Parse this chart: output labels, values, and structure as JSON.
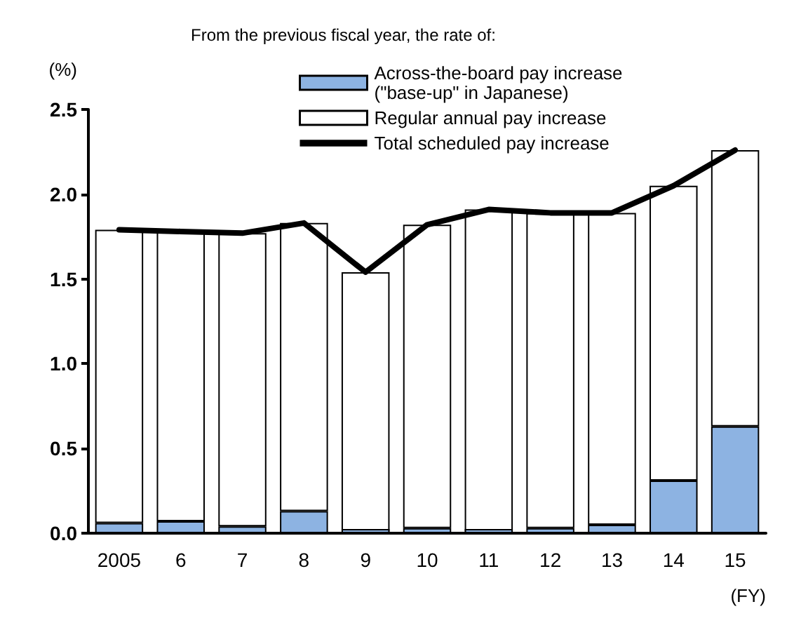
{
  "chart_data": {
    "type": "bar",
    "legend_title": "From the previous fiscal year, the rate of:",
    "ylabel": "(%)",
    "xlabel": "(FY)",
    "categories": [
      "2005",
      "6",
      "7",
      "8",
      "9",
      "10",
      "11",
      "12",
      "13",
      "14",
      "15"
    ],
    "stacked": true,
    "series": [
      {
        "name": "Across-the-board pay increase\n(\"base-up\" in Japanese)",
        "color": "#8db3e2",
        "values": [
          0.06,
          0.07,
          0.04,
          0.13,
          0.01,
          0.03,
          0.01,
          0.03,
          0.05,
          0.31,
          0.63
        ]
      },
      {
        "name": "Regular annual pay increase",
        "color": "#ffffff",
        "values": [
          1.73,
          1.71,
          1.73,
          1.7,
          1.53,
          1.79,
          1.9,
          1.86,
          1.84,
          1.74,
          1.63
        ]
      },
      {
        "name": "Total scheduled pay increase",
        "type": "line",
        "color": "#000000",
        "values": [
          1.79,
          1.78,
          1.77,
          1.83,
          1.54,
          1.82,
          1.91,
          1.89,
          1.89,
          2.05,
          2.26
        ]
      }
    ],
    "ylim": [
      0,
      2.5
    ],
    "yticks": [
      {
        "value": 0,
        "label": "0.0"
      },
      {
        "value": 0.5,
        "label": "0.5"
      },
      {
        "value": 1,
        "label": "1.0"
      },
      {
        "value": 1.5,
        "label": "1.5"
      },
      {
        "value": 2,
        "label": "2.0"
      },
      {
        "value": 2.5,
        "label": "2.5"
      }
    ],
    "grid": false,
    "legend": "top",
    "marker": "none",
    "line_style": "solid"
  }
}
